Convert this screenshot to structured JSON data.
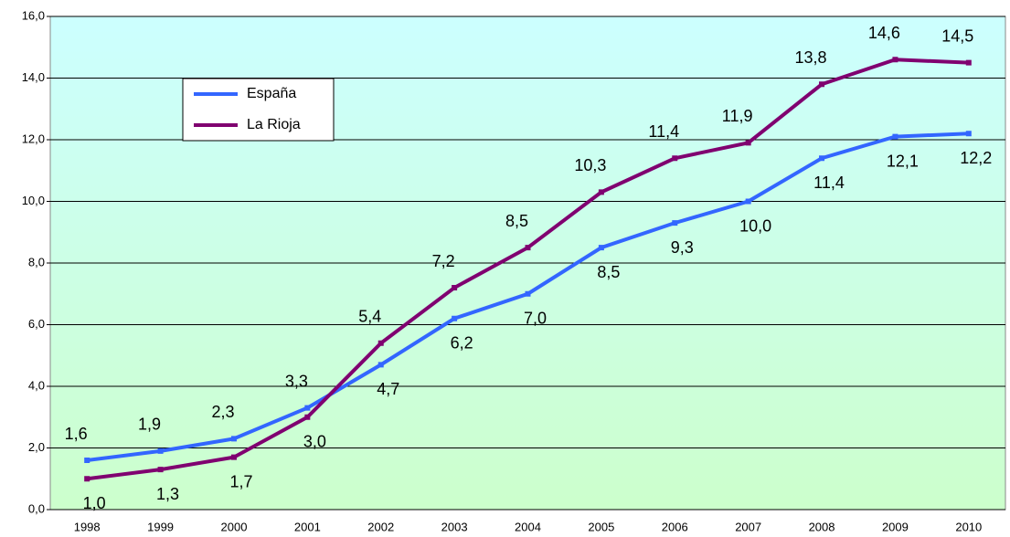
{
  "chart_data": {
    "type": "line",
    "categories": [
      "1998",
      "1999",
      "2000",
      "2001",
      "2002",
      "2003",
      "2004",
      "2005",
      "2006",
      "2007",
      "2008",
      "2009",
      "2010"
    ],
    "series": [
      {
        "name": "España",
        "color": "#3366ff",
        "values": [
          1.6,
          1.9,
          2.3,
          3.3,
          4.7,
          6.2,
          7.0,
          8.5,
          9.3,
          10.0,
          11.4,
          12.1,
          12.2
        ],
        "value_labels": [
          "1,6",
          "1,9",
          "2,3",
          "3,3",
          "4,7",
          "6,2",
          "7,0",
          "8,5",
          "9,3",
          "10,0",
          "11,4",
          "12,1",
          "12,2"
        ]
      },
      {
        "name": "La Rioja",
        "color": "#800070",
        "values": [
          1.0,
          1.3,
          1.7,
          3.0,
          5.4,
          7.2,
          8.5,
          10.3,
          11.4,
          11.9,
          13.8,
          14.6,
          14.5
        ],
        "value_labels": [
          "1,0",
          "1,3",
          "1,7",
          "3,0",
          "5,4",
          "7,2",
          "8,5",
          "10,3",
          "11,4",
          "11,9",
          "13,8",
          "14,6",
          "14,5"
        ]
      }
    ],
    "ylim": [
      0,
      16
    ],
    "yticks": [
      {
        "value": 0,
        "label": "0,0"
      },
      {
        "value": 2,
        "label": "2,0"
      },
      {
        "value": 4,
        "label": "4,0"
      },
      {
        "value": 6,
        "label": "6,0"
      },
      {
        "value": 8,
        "label": "8,0"
      },
      {
        "value": 10,
        "label": "10,0"
      },
      {
        "value": 12,
        "label": "12,0"
      },
      {
        "value": 14,
        "label": "14,0"
      },
      {
        "value": 16,
        "label": "16,0"
      }
    ],
    "grid": true,
    "legend": "upper left"
  }
}
